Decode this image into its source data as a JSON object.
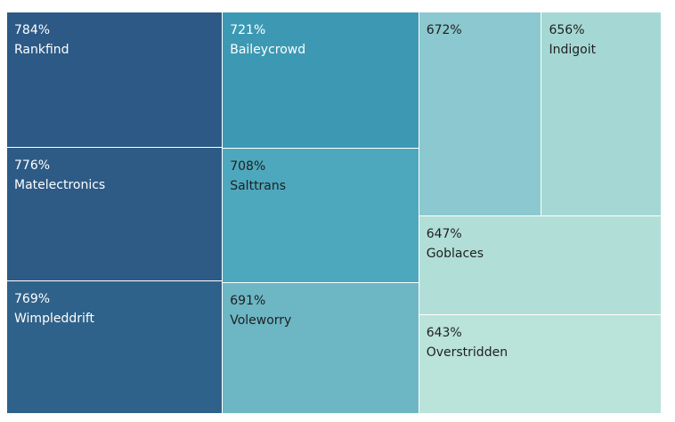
{
  "chart_data": {
    "type": "treemap",
    "title": "",
    "items": [
      {
        "name": "Rankfind",
        "value": 784,
        "label": "784%",
        "color": "#2c5985",
        "text_color": "#ffffff"
      },
      {
        "name": "Matelectronics",
        "value": 776,
        "label": "776%",
        "color": "#2d5b86",
        "text_color": "#ffffff"
      },
      {
        "name": "Wimpleddrift",
        "value": 769,
        "label": "769%",
        "color": "#2f628a",
        "text_color": "#ffffff"
      },
      {
        "name": "Baileycrowd",
        "value": 721,
        "label": "721%",
        "color": "#3d99b3",
        "text_color": "#ffffff"
      },
      {
        "name": "Salttrans",
        "value": 708,
        "label": "708%",
        "color": "#4ea8bd",
        "text_color": "#1f1f1f"
      },
      {
        "name": "Voleworry",
        "value": 691,
        "label": "691%",
        "color": "#6db6c4",
        "text_color": "#1f1f1f"
      },
      {
        "name": "",
        "value": 672,
        "label": "672%",
        "color": "#8bc8cf",
        "text_color": "#1f1f1f"
      },
      {
        "name": "Indigoit",
        "value": 656,
        "label": "656%",
        "color": "#a5d8d4",
        "text_color": "#1f1f1f"
      },
      {
        "name": "Goblaces",
        "value": 647,
        "label": "647%",
        "color": "#b1dfd7",
        "text_color": "#1f1f1f"
      },
      {
        "name": "Overstridden",
        "value": 643,
        "label": "643%",
        "color": "#bae3d9",
        "text_color": "#1f1f1f"
      }
    ]
  }
}
